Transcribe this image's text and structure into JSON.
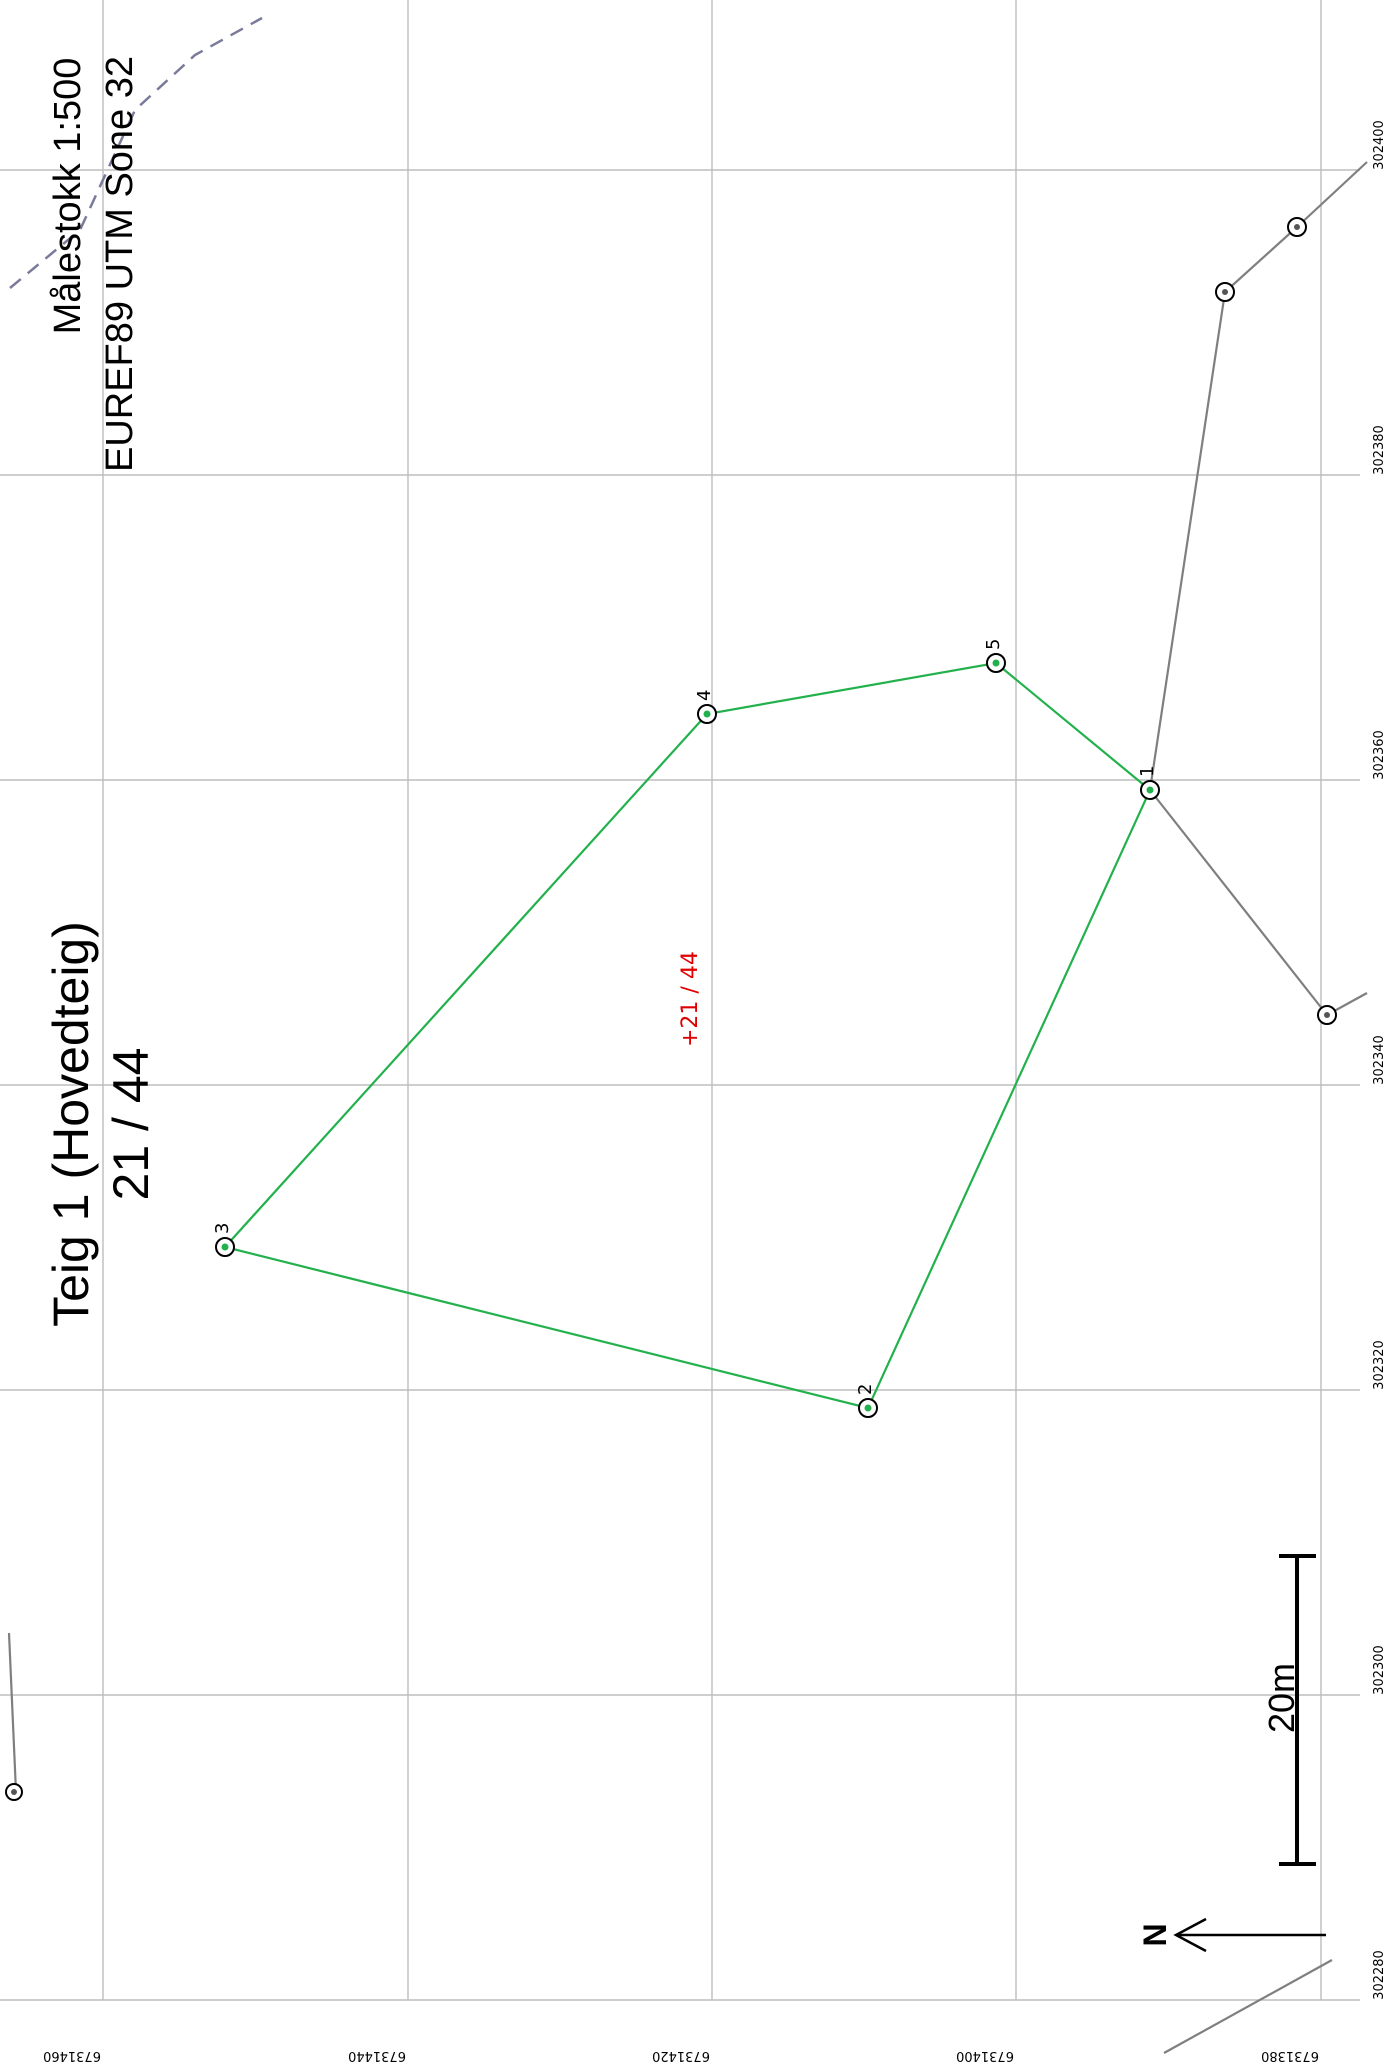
{
  "map": {
    "title": "Teig 1 (Hovedteig)",
    "parcel_id": "21 / 44",
    "scale_text": "Målestokk 1:500",
    "crs_text": "EUREF89 UTM Sone 32",
    "scale_bar_label": "20m",
    "north_label": "N",
    "parcel_center_label": "+21 / 44",
    "colors": {
      "grid": "#bdbdbd",
      "boundary": "#22b14c",
      "neighbor_line": "#7f7f7f",
      "dashed_line": "#7a7a9a",
      "label_red": "#e00000",
      "text": "#000000"
    },
    "grid_labels": {
      "easting": [
        "302400",
        "302380",
        "302360",
        "302340",
        "302320",
        "302300",
        "302280"
      ],
      "northing": [
        "6731460",
        "6731440",
        "6731420",
        "6731400",
        "6731380"
      ]
    },
    "boundary_points": [
      {
        "label": "1"
      },
      {
        "label": "2"
      },
      {
        "label": "3"
      },
      {
        "label": "4"
      },
      {
        "label": "5"
      }
    ]
  }
}
